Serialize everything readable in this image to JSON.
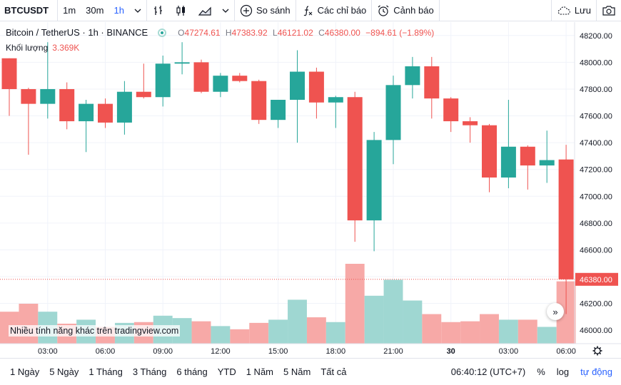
{
  "toolbar": {
    "symbol": "BTCUSDT",
    "intervals": [
      "1m",
      "30m",
      "1h"
    ],
    "compare": "So sánh",
    "indicators": "Các chỉ báo",
    "alerts": "Cảnh báo",
    "save": "Lưu"
  },
  "legend": {
    "title": "Bitcoin / TetherUS · 1h · BINANCE",
    "o_label": "O",
    "o": "47274.61",
    "h_label": "H",
    "h": "47383.92",
    "l_label": "L",
    "l": "46121.02",
    "c_label": "C",
    "c": "46380.00",
    "change": "−894.61 (−1.89%)",
    "volume_label": "Khối lượng",
    "volume_value": "3.369K"
  },
  "watermark": "Nhiều tính năng khác trên tradingview.com",
  "bottom": {
    "ranges": [
      "1 Ngày",
      "5 Ngày",
      "1 Tháng",
      "3 Tháng",
      "6 tháng",
      "YTD",
      "1 Năm",
      "5 Năm",
      "Tất cả"
    ],
    "time": "06:40:12 (UTC+7)",
    "percent": "%",
    "log": "log",
    "auto": "tự động"
  },
  "colors": {
    "up": "#26a69a",
    "down": "#ef5350",
    "up_volume": "#9fd7d2",
    "down_volume": "#f7a9a7",
    "accent": "#2962ff"
  },
  "chart_data": {
    "type": "candlestick",
    "interval": "1h",
    "ylim": [
      45900,
      48300
    ],
    "y_ticks": [
      46000,
      46200,
      46400,
      46600,
      46800,
      47000,
      47200,
      47400,
      47600,
      47800,
      48000,
      48200
    ],
    "y_tick_labels": [
      "46000.00",
      "46200.00",
      "46400.00",
      "46600.00",
      "46800.00",
      "47000.00",
      "47200.00",
      "47400.00",
      "47600.00",
      "47800.00",
      "48000.00",
      "48200.00"
    ],
    "x_tick_labels": [
      "03:00",
      "06:00",
      "09:00",
      "12:00",
      "15:00",
      "18:00",
      "21:00",
      "30",
      "03:00",
      "06:00"
    ],
    "x_tick_candle_index": [
      2,
      5,
      8,
      11,
      14,
      17,
      20,
      23,
      26,
      29
    ],
    "last_price": 46380.0,
    "last_price_label": "46380.00",
    "candles": [
      {
        "o": 48030,
        "h": 48030,
        "l": 47600,
        "c": 47800
      },
      {
        "o": 47800,
        "h": 47810,
        "l": 47310,
        "c": 47690
      },
      {
        "o": 47690,
        "h": 48150,
        "l": 47580,
        "c": 47800
      },
      {
        "o": 47800,
        "h": 47850,
        "l": 47500,
        "c": 47560
      },
      {
        "o": 47560,
        "h": 47720,
        "l": 47330,
        "c": 47690
      },
      {
        "o": 47690,
        "h": 47730,
        "l": 47510,
        "c": 47550
      },
      {
        "o": 47550,
        "h": 47860,
        "l": 47460,
        "c": 47780
      },
      {
        "o": 47780,
        "h": 47990,
        "l": 47730,
        "c": 47740
      },
      {
        "o": 47740,
        "h": 48050,
        "l": 47670,
        "c": 47990
      },
      {
        "o": 47990,
        "h": 48150,
        "l": 47910,
        "c": 48000
      },
      {
        "o": 48000,
        "h": 48020,
        "l": 47770,
        "c": 47780
      },
      {
        "o": 47780,
        "h": 47920,
        "l": 47740,
        "c": 47900
      },
      {
        "o": 47900,
        "h": 47920,
        "l": 47850,
        "c": 47860
      },
      {
        "o": 47860,
        "h": 47870,
        "l": 47540,
        "c": 47570
      },
      {
        "o": 47570,
        "h": 47720,
        "l": 47510,
        "c": 47720
      },
      {
        "o": 47720,
        "h": 48090,
        "l": 47400,
        "c": 47930
      },
      {
        "o": 47930,
        "h": 47960,
        "l": 47580,
        "c": 47700
      },
      {
        "o": 47700,
        "h": 47750,
        "l": 47510,
        "c": 47740
      },
      {
        "o": 47740,
        "h": 47780,
        "l": 46660,
        "c": 46820
      },
      {
        "o": 46820,
        "h": 47480,
        "l": 46590,
        "c": 47420
      },
      {
        "o": 47420,
        "h": 47900,
        "l": 47240,
        "c": 47830
      },
      {
        "o": 47830,
        "h": 48040,
        "l": 47730,
        "c": 47970
      },
      {
        "o": 47970,
        "h": 48040,
        "l": 47580,
        "c": 47730
      },
      {
        "o": 47730,
        "h": 47740,
        "l": 47480,
        "c": 47560
      },
      {
        "o": 47560,
        "h": 47590,
        "l": 47400,
        "c": 47530
      },
      {
        "o": 47530,
        "h": 47540,
        "l": 47030,
        "c": 47140
      },
      {
        "o": 47140,
        "h": 47720,
        "l": 47060,
        "c": 47370
      },
      {
        "o": 47370,
        "h": 47380,
        "l": 47050,
        "c": 47230
      },
      {
        "o": 47230,
        "h": 47490,
        "l": 47100,
        "c": 47270
      },
      {
        "o": 47274.61,
        "h": 47383.92,
        "l": 46121.02,
        "c": 46380
      }
    ],
    "volume_relative": [
      0.4,
      0.5,
      0.4,
      0.25,
      0.3,
      0.21,
      0.26,
      0.27,
      0.35,
      0.32,
      0.28,
      0.22,
      0.18,
      0.26,
      0.3,
      0.55,
      0.33,
      0.27,
      1.0,
      0.6,
      0.8,
      0.54,
      0.37,
      0.27,
      0.28,
      0.37,
      0.3,
      0.3,
      0.21,
      0.78
    ]
  }
}
